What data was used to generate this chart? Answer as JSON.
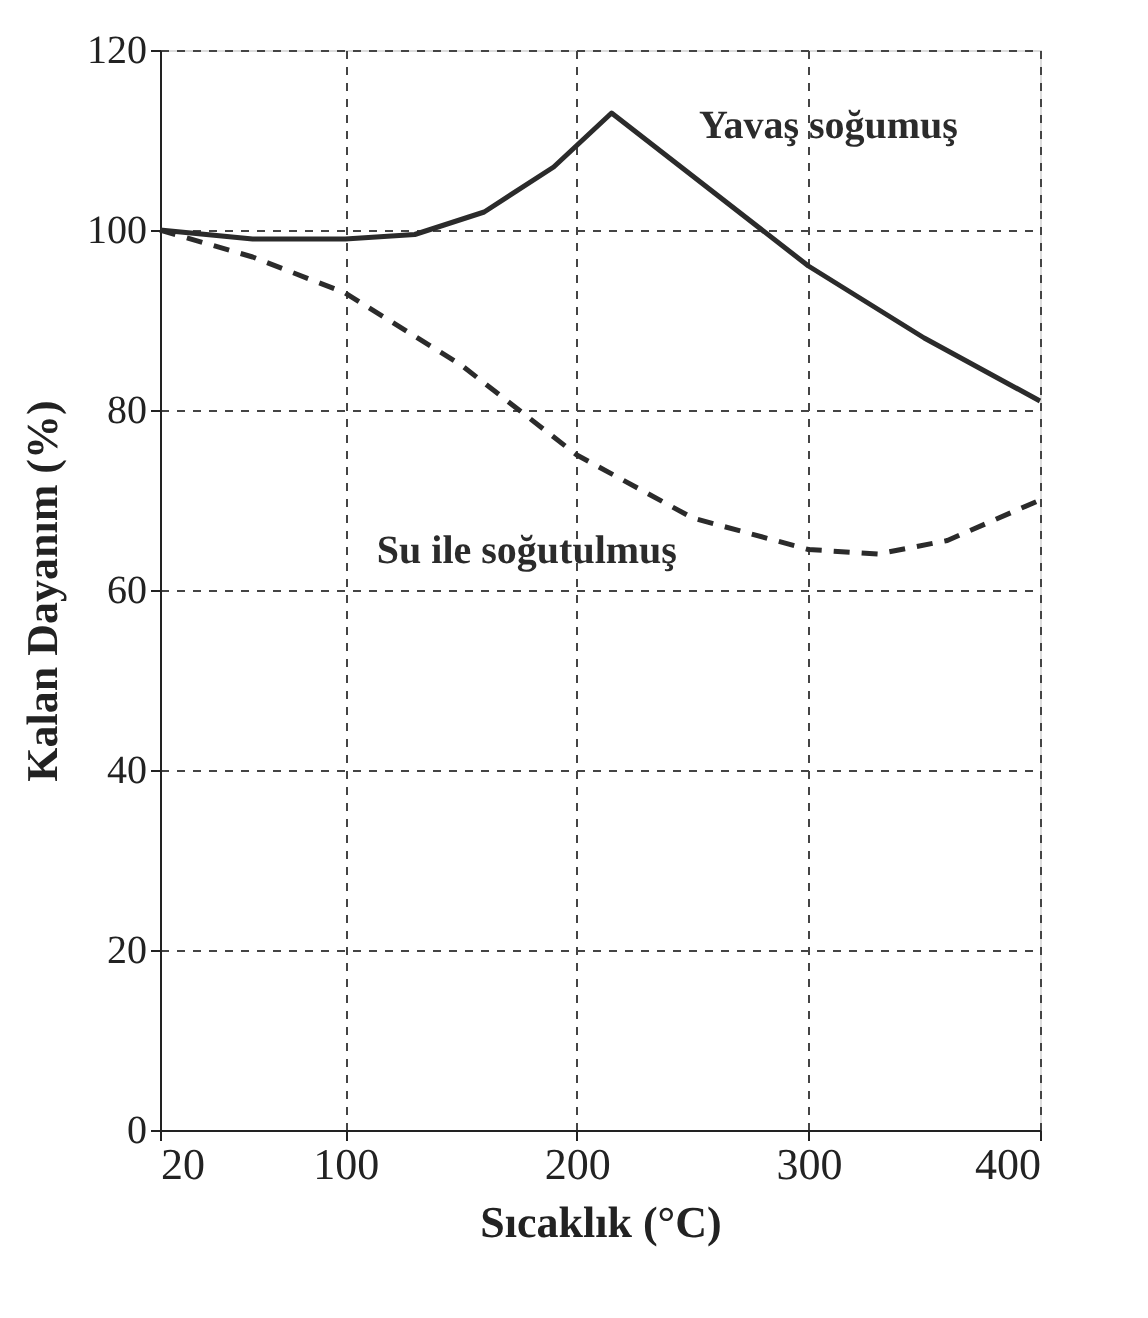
{
  "chart_data": {
    "type": "line",
    "xlabel": "Sıcaklık (°C)",
    "ylabel": "Kalan Dayanım (%)",
    "xlim": [
      20,
      400
    ],
    "xticks": [
      20,
      100,
      200,
      300,
      400
    ],
    "ylim": [
      0,
      120
    ],
    "yticks": [
      0,
      20,
      40,
      60,
      80,
      100,
      120
    ],
    "grid": true,
    "marker": "none",
    "series": [
      {
        "name": "Yavaş soğumuş",
        "color": "#2b2b2b",
        "line_style": "solid",
        "x": [
          20,
          60,
          100,
          130,
          160,
          190,
          215,
          250,
          300,
          350,
          400
        ],
        "values": [
          100,
          99,
          99,
          99.5,
          102,
          107,
          113,
          106,
          96,
          88,
          81
        ]
      },
      {
        "name": "Su ile soğutulmuş",
        "color": "#2b2b2b",
        "line_style": "dashed",
        "x": [
          20,
          60,
          100,
          150,
          200,
          250,
          300,
          330,
          360,
          400
        ],
        "values": [
          100,
          97,
          93,
          85,
          75,
          68,
          64.5,
          64,
          65.5,
          70
        ]
      }
    ]
  }
}
